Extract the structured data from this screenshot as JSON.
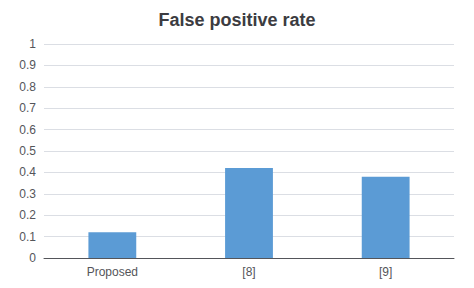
{
  "chart_data": {
    "type": "bar",
    "title": "False positive rate",
    "categories": [
      "Proposed",
      "[8]",
      "[9]"
    ],
    "values": [
      0.12,
      0.42,
      0.38
    ],
    "color": "#5b9bd5",
    "ylim": [
      0,
      1.0
    ],
    "yticks": [
      0,
      0.1,
      0.2,
      0.3,
      0.4,
      0.5,
      0.6,
      0.7,
      0.8,
      0.9,
      1
    ],
    "grid": true
  }
}
